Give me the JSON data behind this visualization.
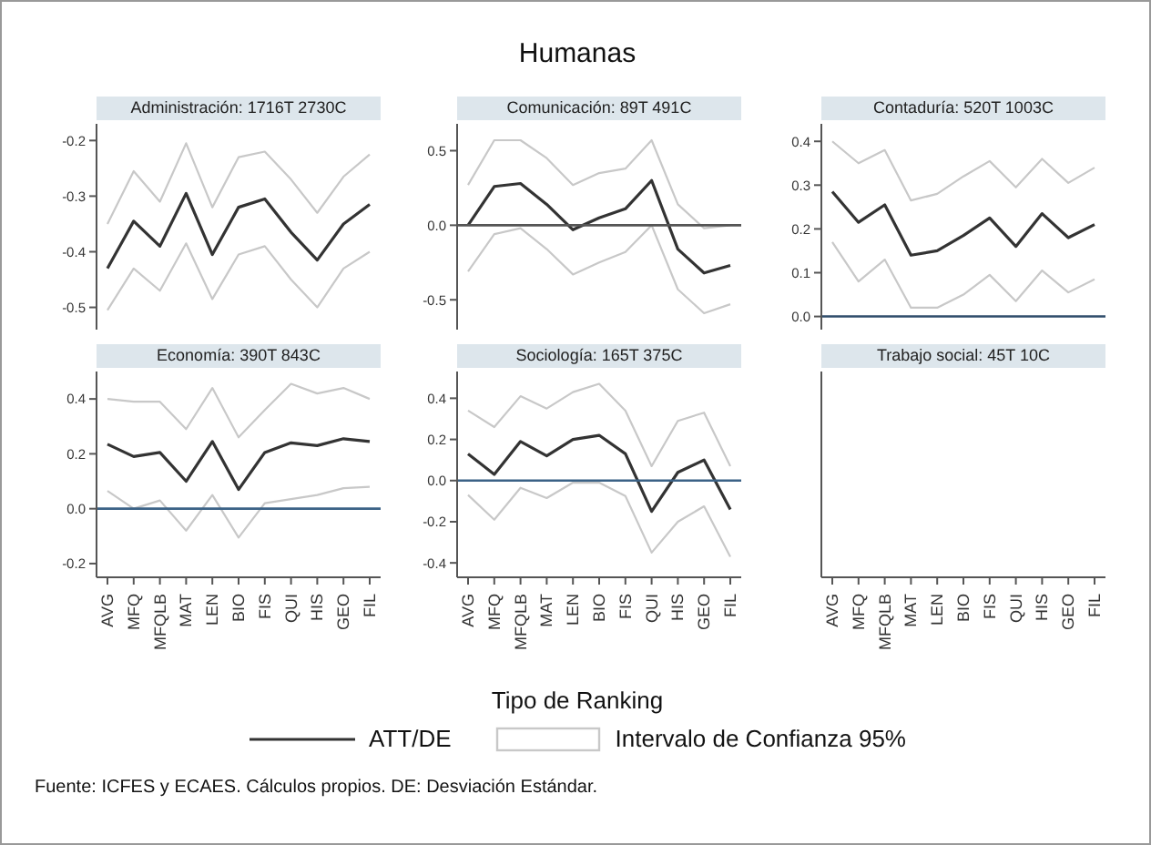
{
  "chart_data": [
    {
      "type": "other",
      "title": "Humanas"
    },
    {
      "type": "line",
      "title": "Administración: 1716T 2730C",
      "categories": [
        null,
        null,
        null,
        null,
        null,
        null,
        null,
        null,
        null,
        null,
        null
      ],
      "tick_labels": "y",
      "ylim": [
        -0.54,
        -0.17
      ],
      "yticks": [
        {
          "value": -0.5,
          "label": "-0.5"
        },
        {
          "value": -0.4,
          "label": "-0.4"
        },
        {
          "value": -0.3,
          "label": "-0.3"
        },
        {
          "value": -0.2,
          "label": "-0.2"
        }
      ],
      "series": [
        {
          "type": "line",
          "color": "#333333",
          "values": [
            -0.43,
            -0.345,
            -0.39,
            -0.295,
            -0.405,
            -0.32,
            -0.305,
            -0.365,
            -0.415,
            -0.35,
            -0.315
          ]
        },
        {
          "type": "line",
          "color": "#c8c8c8",
          "values": [
            -0.505,
            -0.43,
            -0.47,
            -0.385,
            -0.485,
            -0.405,
            -0.39,
            -0.45,
            -0.5,
            -0.43,
            -0.4
          ]
        },
        {
          "type": "line",
          "color": "#c8c8c8",
          "values": [
            -0.35,
            -0.255,
            -0.31,
            -0.205,
            -0.32,
            -0.23,
            -0.22,
            -0.27,
            -0.33,
            -0.265,
            -0.225
          ]
        }
      ]
    },
    {
      "type": "line",
      "title": "Comunicación: 89T 491C",
      "categories": [
        null,
        null,
        null,
        null,
        null,
        null,
        null,
        null,
        null,
        null,
        null
      ],
      "tick_labels": "y",
      "ylim": [
        -0.7,
        0.68
      ],
      "yticks": [
        {
          "value": -0.5,
          "label": "-0.5"
        },
        {
          "value": 0,
          "label": "0.0"
        },
        {
          "value": 0.5,
          "label": "0.5"
        }
      ],
      "ref_lines": [
        {
          "axis": "y",
          "value": 0,
          "color": "#555555"
        }
      ],
      "series": [
        {
          "type": "line",
          "color": "#333333",
          "values": [
            0,
            0.26,
            0.28,
            0.14,
            -0.03,
            0.05,
            0.11,
            0.3,
            -0.16,
            -0.32,
            -0.27
          ]
        },
        {
          "type": "line",
          "color": "#c8c8c8",
          "values": [
            -0.31,
            -0.06,
            -0.02,
            -0.16,
            -0.33,
            -0.25,
            -0.18,
            0,
            -0.43,
            -0.59,
            -0.53
          ]
        },
        {
          "type": "line",
          "color": "#c8c8c8",
          "values": [
            0.27,
            0.57,
            0.57,
            0.45,
            0.27,
            0.35,
            0.38,
            0.57,
            0.14,
            -0.02,
            0
          ]
        }
      ]
    },
    {
      "type": "line",
      "title": "Contaduría: 520T 1003C",
      "categories": [
        null,
        null,
        null,
        null,
        null,
        null,
        null,
        null,
        null,
        null,
        null
      ],
      "tick_labels": "y",
      "ylim": [
        -0.03,
        0.44
      ],
      "yticks": [
        {
          "value": 0,
          "label": "0.0"
        },
        {
          "value": 0.1,
          "label": "0.1"
        },
        {
          "value": 0.2,
          "label": "0.2"
        },
        {
          "value": 0.3,
          "label": "0.3"
        },
        {
          "value": 0.4,
          "label": "0.4"
        }
      ],
      "ref_lines": [
        {
          "axis": "y",
          "value": 0,
          "color": "#2f4d6b"
        }
      ],
      "series": [
        {
          "type": "line",
          "color": "#333333",
          "values": [
            0.285,
            0.215,
            0.255,
            0.14,
            0.15,
            0.185,
            0.225,
            0.16,
            0.235,
            0.18,
            0.21
          ]
        },
        {
          "type": "line",
          "color": "#c8c8c8",
          "values": [
            0.17,
            0.08,
            0.13,
            0.02,
            0.02,
            0.05,
            0.095,
            0.035,
            0.105,
            0.055,
            0.085
          ]
        },
        {
          "type": "line",
          "color": "#c8c8c8",
          "values": [
            0.4,
            0.35,
            0.38,
            0.265,
            0.28,
            0.32,
            0.355,
            0.295,
            0.36,
            0.305,
            0.34
          ]
        }
      ]
    },
    {
      "type": "line",
      "title": "Economía: 390T 843C",
      "categories": [
        "AVG",
        "MFQ",
        "MFQLB",
        "MAT",
        "LEN",
        "BIO",
        "FIS",
        "QUI",
        "HIS",
        "GEO",
        "FIL"
      ],
      "ylim": [
        -0.25,
        0.5
      ],
      "yticks": [
        {
          "value": -0.2,
          "label": "-0.2"
        },
        {
          "value": 0,
          "label": "0.0"
        },
        {
          "value": 0.2,
          "label": "0.2"
        },
        {
          "value": 0.4,
          "label": "0.4"
        }
      ],
      "ref_lines": [
        {
          "axis": "y",
          "value": 0,
          "color": "#3b6286"
        }
      ],
      "series": [
        {
          "type": "line",
          "color": "#333333",
          "values": [
            0.235,
            0.19,
            0.205,
            0.1,
            0.245,
            0.07,
            0.205,
            0.24,
            0.23,
            0.255,
            0.245
          ]
        },
        {
          "type": "line",
          "color": "#c8c8c8",
          "values": [
            0.065,
            0,
            0.03,
            -0.08,
            0.05,
            -0.105,
            0.02,
            0.035,
            0.05,
            0.075,
            0.08
          ]
        },
        {
          "type": "line",
          "color": "#c8c8c8",
          "values": [
            0.4,
            0.39,
            0.39,
            0.29,
            0.44,
            0.26,
            0.36,
            0.455,
            0.42,
            0.44,
            0.4
          ]
        }
      ]
    },
    {
      "type": "line",
      "title": "Sociología: 165T 375C",
      "xlabel": "Tipo de Ranking",
      "legend": "bottom",
      "annotations": [
        "Intervalo de Confianza 95%"
      ],
      "categories": [
        "AVG",
        "MFQ",
        "MFQLB",
        "MAT",
        "LEN",
        "BIO",
        "FIS",
        "QUI",
        "HIS",
        "GEO",
        "FIL"
      ],
      "ylim": [
        -0.47,
        0.53
      ],
      "yticks": [
        {
          "value": -0.4,
          "label": "-0.4"
        },
        {
          "value": -0.2,
          "label": "-0.2"
        },
        {
          "value": 0,
          "label": "0.0"
        },
        {
          "value": 0.2,
          "label": "0.2"
        },
        {
          "value": 0.4,
          "label": "0.4"
        }
      ],
      "ref_lines": [
        {
          "axis": "y",
          "value": 0,
          "color": "#3b6286"
        }
      ],
      "series": [
        {
          "type": "line",
          "name": "ATT/DE",
          "color": "#333333",
          "values": [
            0.13,
            0.03,
            0.19,
            0.12,
            0.2,
            0.22,
            0.13,
            -0.15,
            0.04,
            0.1,
            -0.14
          ]
        },
        {
          "type": "line",
          "color": "#c8c8c8",
          "values": [
            -0.07,
            -0.19,
            -0.035,
            -0.085,
            -0.01,
            -0.01,
            -0.075,
            -0.35,
            -0.2,
            -0.125,
            -0.37
          ]
        },
        {
          "type": "line",
          "color": "#c8c8c8",
          "values": [
            0.34,
            0.26,
            0.41,
            0.35,
            0.43,
            0.47,
            0.34,
            0.07,
            0.29,
            0.33,
            0.07
          ]
        }
      ]
    },
    {
      "type": "other",
      "title": "Trabajo social: 45T 10C",
      "categories": [
        "AVG",
        "MFQ",
        "MFQLB",
        "MAT",
        "LEN",
        "BIO",
        "FIS",
        "QUI",
        "HIS",
        "GEO",
        "FIL"
      ]
    },
    {
      "type": "other",
      "annotations": [
        "Fuente: ICFES y ECAES. Cálculos propios. DE: Desviación Estándar."
      ]
    }
  ]
}
